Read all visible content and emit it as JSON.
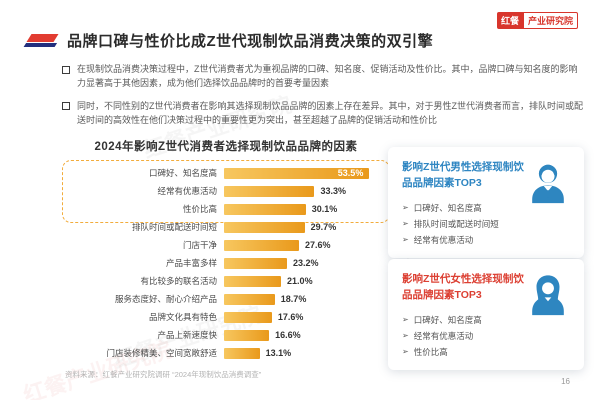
{
  "logo": {
    "brand": "红餐",
    "suffix": "产业研究院"
  },
  "watermark": "红餐产业研究院",
  "page": {
    "number": "16"
  },
  "title": "品牌口碑与性价比成Z世代现制饮品消费决策的双引擎",
  "bullets": [
    "在现制饮品消费决策过程中，Z世代消费者尤为重视品牌的口碑、知名度、促销活动及性价比。其中，品牌口碑与知名度的影响力显著高于其他因素，成为他们选择饮品品牌时的首要考量因素",
    "同时，不同性别的Z世代消费者在影响其选择现制饮品品牌的因素上存在差异。其中，对于男性Z世代消费者而言，排队时间或配送时间的高效性在他们决策过程中的重要性更为突出，甚至超越了品牌的促销活动和性价比"
  ],
  "chart_data": {
    "type": "bar",
    "orientation": "horizontal",
    "title": "2024年影响Z世代消费者选择现制饮品品牌的因素",
    "categories": [
      "口碑好、知名度高",
      "经常有优惠活动",
      "性价比高",
      "排队时间或配送时间短",
      "门店干净",
      "产品丰富多样",
      "有比较多的联名活动",
      "服务态度好、耐心介绍产品",
      "品牌文化具有特色",
      "产品上新速度快",
      "门店装修精美、空间宽敞舒适"
    ],
    "values": [
      53.5,
      33.3,
      30.1,
      29.7,
      27.6,
      23.2,
      21.0,
      18.7,
      17.6,
      16.6,
      13.1
    ],
    "value_suffix": "%",
    "xlim": [
      0,
      60
    ],
    "highlight_top": 3,
    "legend": "none",
    "grid": false,
    "bar_color_start": "#F7C75F",
    "bar_color_end": "#E9991B"
  },
  "panels": [
    {
      "title": "影响Z世代男性选择现制饮品品牌因素TOP3",
      "title_color": "#2f86c2",
      "icon": "male-user-icon",
      "items": [
        "口碑好、知名度高",
        "排队时间或配送时间短",
        "经常有优惠活动"
      ]
    },
    {
      "title": "影响Z世代女性选择现制饮品品牌因素TOP3",
      "title_color": "#dc4033",
      "icon": "female-user-icon",
      "items": [
        "口碑好、知名度高",
        "经常有优惠活动",
        "性价比高"
      ]
    }
  ],
  "source": "资料来源：红餐产业研究院调研 “2024年现制饮品消费调查”",
  "colors": {
    "accent_red": "#e23c31",
    "accent_navy": "#232f7e",
    "logo_red": "#d8352c",
    "icon_blue": "#2e86c0",
    "dashed_highlight": "#f2ac3c"
  }
}
